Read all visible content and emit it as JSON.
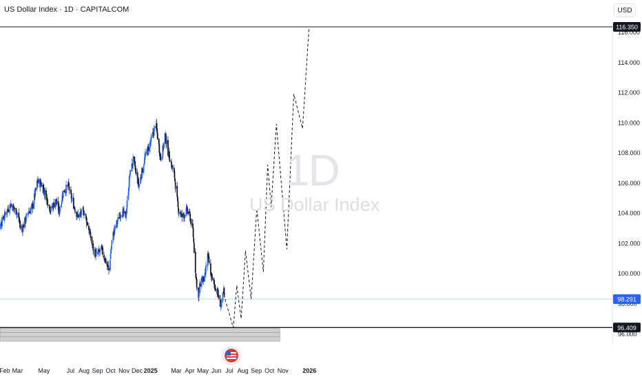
{
  "header": {
    "title": "US Dollar Index · 1D · CAPITALCOM",
    "currency": "USD"
  },
  "watermark": {
    "interval": "1D",
    "name": "US Dollar Index"
  },
  "colors": {
    "up": "#2962ff",
    "down": "#131722",
    "projection": "#131722",
    "price_line": "#bcd2f7",
    "price_label": "#2962ff",
    "level_label": "#131722",
    "zone": "#cfcfcf"
  },
  "icons": {
    "event_marker": "us-flag-icon"
  },
  "chart_data": {
    "type": "candlestick",
    "title": "US Dollar Index · 1D · CAPITALCOM",
    "xlabel": "",
    "ylabel": "",
    "ylim": [
      95.5,
      116.9
    ],
    "y_ticks": [
      "96.000",
      "98.000",
      "100.000",
      "102.000",
      "104.000",
      "106.000",
      "108.000",
      "110.000",
      "112.000",
      "114.000",
      "116.000"
    ],
    "y_tick_values": [
      96,
      98,
      100,
      102,
      104,
      106,
      108,
      110,
      112,
      114,
      116
    ],
    "x_ticks": [
      "Feb",
      "Mar",
      "May",
      "Jul",
      "Aug",
      "Sep",
      "Oct",
      "Nov",
      "Dec",
      "2025",
      "Mar",
      "Apr",
      "May",
      "Jun",
      "Jul",
      "Aug",
      "Sep",
      "Oct",
      "Nov",
      "2026"
    ],
    "x_tick_dates": [
      "2024-02-01",
      "2024-03-01",
      "2024-05-01",
      "2024-07-01",
      "2024-08-01",
      "2024-09-01",
      "2024-10-01",
      "2024-11-01",
      "2024-12-01",
      "2025-01-01",
      "2025-03-01",
      "2025-04-01",
      "2025-05-01",
      "2025-06-01",
      "2025-07-01",
      "2025-08-01",
      "2025-09-01",
      "2025-10-01",
      "2025-11-01",
      "2026-01-01"
    ],
    "price_path": [
      [
        "2024-01-05",
        102.0
      ],
      [
        "2024-01-20",
        103.1
      ],
      [
        "2024-02-05",
        104.1
      ],
      [
        "2024-02-15",
        104.6
      ],
      [
        "2024-03-01",
        104.0
      ],
      [
        "2024-03-10",
        102.8
      ],
      [
        "2024-03-25",
        104.0
      ],
      [
        "2024-04-05",
        104.5
      ],
      [
        "2024-04-16",
        106.1
      ],
      [
        "2024-04-25",
        105.9
      ],
      [
        "2024-05-05",
        105.2
      ],
      [
        "2024-05-16",
        104.2
      ],
      [
        "2024-05-28",
        104.8
      ],
      [
        "2024-06-05",
        104.1
      ],
      [
        "2024-06-14",
        105.4
      ],
      [
        "2024-06-26",
        105.8
      ],
      [
        "2024-07-05",
        104.8
      ],
      [
        "2024-07-17",
        103.8
      ],
      [
        "2024-08-01",
        104.1
      ],
      [
        "2024-08-10",
        103.2
      ],
      [
        "2024-08-23",
        101.5
      ],
      [
        "2024-08-31",
        101.2
      ],
      [
        "2024-09-10",
        101.6
      ],
      [
        "2024-09-20",
        100.8
      ],
      [
        "2024-09-27",
        100.2
      ],
      [
        "2024-10-05",
        102.4
      ],
      [
        "2024-10-15",
        103.3
      ],
      [
        "2024-10-25",
        104.1
      ],
      [
        "2024-11-05",
        103.8
      ],
      [
        "2024-11-14",
        106.5
      ],
      [
        "2024-11-22",
        107.5
      ],
      [
        "2024-12-05",
        105.8
      ],
      [
        "2024-12-20",
        107.8
      ],
      [
        "2025-01-01",
        108.7
      ],
      [
        "2025-01-13",
        109.9
      ],
      [
        "2025-01-25",
        107.4
      ],
      [
        "2025-02-03",
        109.2
      ],
      [
        "2025-02-10",
        108.1
      ],
      [
        "2025-02-25",
        106.4
      ],
      [
        "2025-03-05",
        104.3
      ],
      [
        "2025-03-15",
        103.7
      ],
      [
        "2025-03-25",
        104.2
      ],
      [
        "2025-04-01",
        103.8
      ],
      [
        "2025-04-08",
        102.9
      ],
      [
        "2025-04-15",
        99.8
      ],
      [
        "2025-04-21",
        98.3
      ],
      [
        "2025-04-26",
        99.6
      ],
      [
        "2025-05-05",
        99.6
      ],
      [
        "2025-05-12",
        101.2
      ],
      [
        "2025-05-22",
        99.6
      ],
      [
        "2025-06-02",
        98.9
      ],
      [
        "2025-06-12",
        97.8
      ],
      [
        "2025-06-18",
        98.8
      ],
      [
        "2025-06-21",
        98.291
      ]
    ],
    "projection": [
      [
        "2025-06-21",
        98.291
      ],
      [
        "2025-07-10",
        96.4
      ],
      [
        "2025-07-18",
        99.2
      ],
      [
        "2025-07-28",
        97.0
      ],
      [
        "2025-08-07",
        101.5
      ],
      [
        "2025-08-20",
        98.3
      ],
      [
        "2025-09-02",
        104.3
      ],
      [
        "2025-09-17",
        100.1
      ],
      [
        "2025-09-27",
        107.2
      ],
      [
        "2025-10-05",
        104.4
      ],
      [
        "2025-10-17",
        109.9
      ],
      [
        "2025-11-10",
        101.6
      ],
      [
        "2025-11-26",
        111.9
      ],
      [
        "2025-12-16",
        109.6
      ],
      [
        "2025-12-31",
        116.3
      ]
    ],
    "levels": [
      {
        "value": 116.35,
        "label": "116.350",
        "style": "resistance"
      },
      {
        "value": 98.291,
        "label": "98.291",
        "style": "last-price"
      },
      {
        "value": 96.409,
        "label": "96.409",
        "style": "support"
      }
    ],
    "support_zone": {
      "from": 95.5,
      "to": 96.35,
      "end_date": "2025-10-25"
    },
    "event_marker_date": "2025-07-03",
    "grid": false,
    "legend": "none"
  }
}
